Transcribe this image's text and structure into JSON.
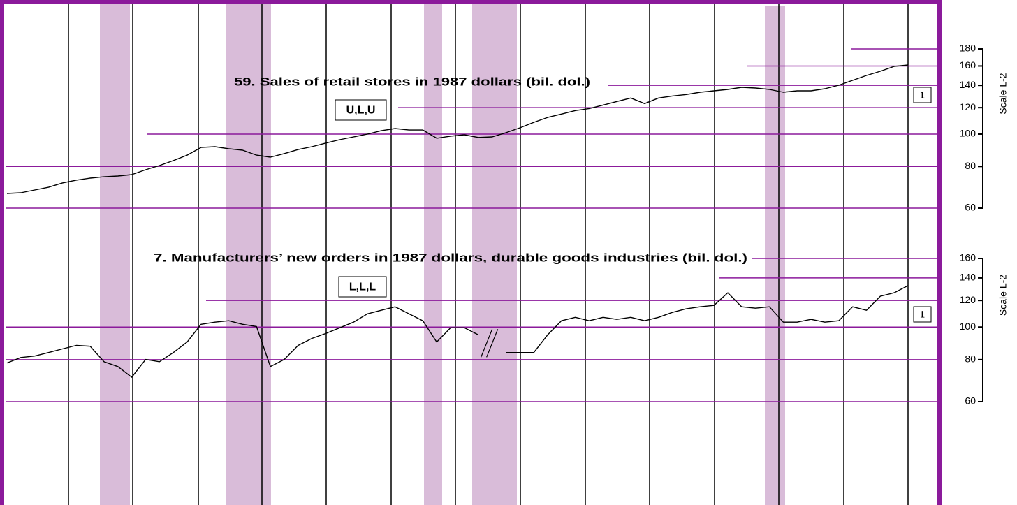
{
  "chart_data": [
    {
      "type": "line",
      "title": "59. Sales of retail stores in 1987 dollars (bil. dol.)",
      "code": "U,L,U",
      "note": "1",
      "axis_label": "Scale L-2",
      "log_scale": true,
      "grid": true,
      "color": "#000000",
      "grid_color": "#8b1a9b",
      "ylim": [
        60,
        180
      ],
      "yticks": [
        60,
        80,
        100,
        120,
        140,
        160,
        180
      ],
      "values": [
        66.4,
        66.7,
        68.0,
        69.3,
        71.4,
        72.8,
        73.8,
        74.5,
        74.9,
        75.6,
        78.2,
        80.5,
        83.3,
        86.5,
        91.2,
        91.7,
        90.4,
        89.5,
        86.5,
        85.3,
        87.4,
        89.9,
        91.7,
        94.0,
        96.2,
        98.1,
        100.0,
        102.4,
        103.9,
        102.9,
        102.9,
        97.2,
        98.6,
        99.5,
        97.7,
        98.1,
        101.0,
        104.4,
        108.5,
        112.2,
        114.8,
        117.6,
        119.3,
        122.2,
        125.2,
        128.3,
        123.4,
        128.3,
        130.1,
        131.4,
        133.5,
        134.8,
        136.1,
        138.1,
        137.4,
        136.1,
        133.5,
        134.8,
        134.8,
        136.8,
        140.1,
        144.9,
        149.9,
        154.3,
        159.6,
        161.1
      ]
    },
    {
      "type": "line",
      "title": "7. Manufacturers’ new orders in 1987 dollars, durable goods industries (bil. dol.)",
      "code": "L,L,L",
      "note": "1",
      "axis_label": "Scale L-2",
      "log_scale": true,
      "grid": true,
      "color": "#000000",
      "grid_color": "#8b1a9b",
      "ylim": [
        60,
        160
      ],
      "yticks": [
        60,
        80,
        100,
        120,
        140,
        160
      ],
      "values": [
        78.2,
        81.2,
        82.0,
        84.0,
        86.1,
        88.2,
        87.7,
        78.9,
        76.3,
        70.9,
        80.1,
        78.9,
        84.0,
        90.3,
        101.9,
        103.4,
        104.4,
        101.9,
        100.4,
        76.3,
        80.1,
        88.2,
        92.5,
        95.7,
        99.5,
        103.4,
        109.5,
        112.2,
        114.9,
        109.5,
        104.4,
        90.3,
        99.5,
        99.5,
        94.8,
        null,
        84.0,
        84.0,
        84.0,
        94.8,
        104.4,
        106.9,
        104.4,
        106.9,
        105.4,
        106.9,
        104.4,
        106.9,
        110.6,
        113.3,
        114.9,
        116.0,
        126.5,
        114.9,
        113.8,
        114.9,
        103.4,
        103.4,
        105.4,
        103.4,
        104.4,
        114.9,
        112.2,
        123.5,
        126.5,
        132.8
      ]
    }
  ]
}
